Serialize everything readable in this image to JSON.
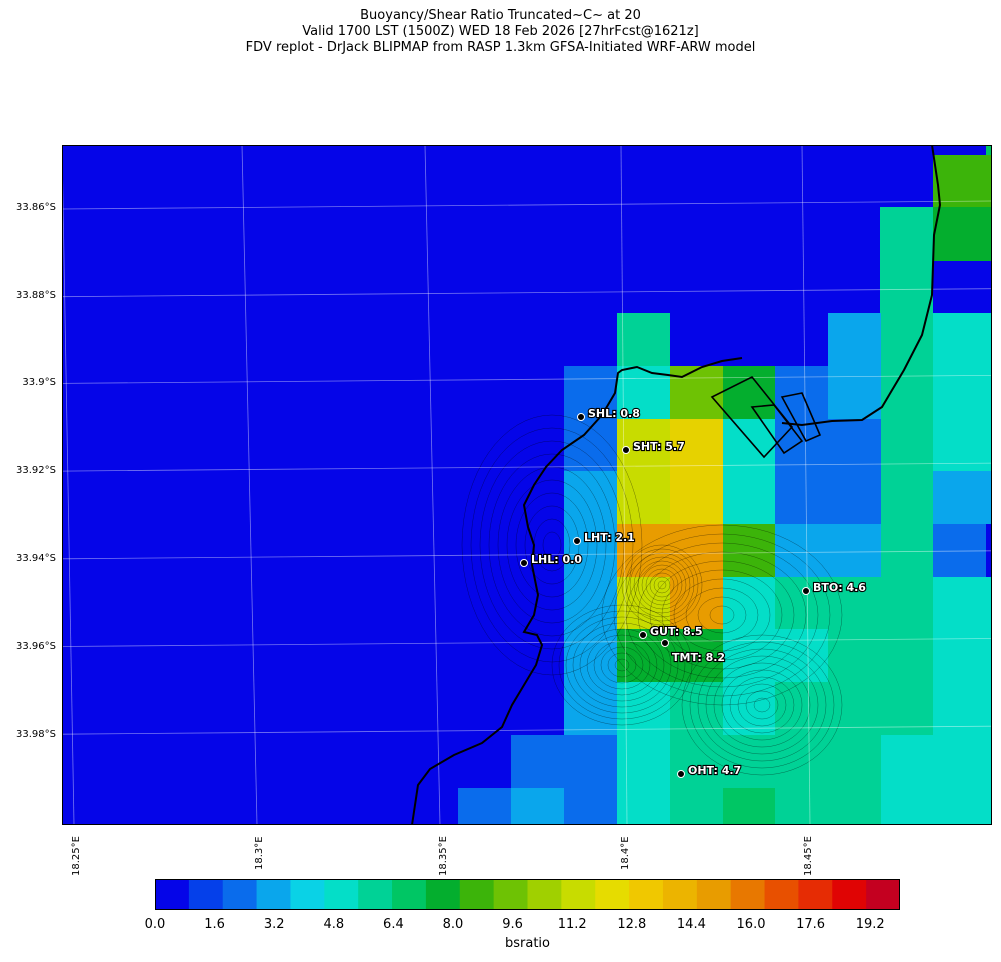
{
  "title": {
    "line1": "Buoyancy/Shear Ratio Truncated~C~    at 20",
    "line2": "Valid 1700 LST (1500Z) WED 18 Feb 2026 [27hrFcst@1621z]",
    "line3": "FDV replot - DrJack BLIPMAP from RASP 1.3km GFSA-Initiated WRF-ARW model"
  },
  "lat_labels": [
    "33.86°S",
    "33.88°S",
    "33.9°S",
    "33.92°S",
    "33.94°S",
    "33.96°S",
    "33.98°S"
  ],
  "lon_labels": [
    "18.25°E",
    "18.3°E",
    "18.35°E",
    "18.4°E",
    "18.45°E"
  ],
  "stations": [
    {
      "label": "SHL: 0.8",
      "value": 0.8
    },
    {
      "label": "SHT: 5.7",
      "value": 5.7
    },
    {
      "label": "LHT: 2.1",
      "value": 2.1
    },
    {
      "label": "LHL: 0.0",
      "value": 0.0
    },
    {
      "label": "BTO: 4.6",
      "value": 4.6
    },
    {
      "label": "GUT: 8.5",
      "value": 8.5
    },
    {
      "label": "TMT: 8.2",
      "value": 8.2
    },
    {
      "label": "OHT: 4.7",
      "value": 4.7
    }
  ],
  "colorbar": {
    "label": "bsratio",
    "ticks": [
      "0.0",
      "1.6",
      "3.2",
      "4.8",
      "6.4",
      "8.0",
      "9.6",
      "11.2",
      "12.8",
      "14.4",
      "16.0",
      "17.6",
      "19.2"
    ],
    "range": [
      0,
      20
    ],
    "colors": [
      "#0505e8",
      "#0540ea",
      "#0a6cec",
      "#0aa6ec",
      "#0ad2e6",
      "#04dec8",
      "#00d296",
      "#00c664",
      "#04ae2e",
      "#3cb40a",
      "#6ec204",
      "#a0d000",
      "#c8dc00",
      "#e6dc00",
      "#f0c800",
      "#ecb400",
      "#e89c00",
      "#e87800",
      "#e85000",
      "#e62c04",
      "#e00404",
      "#c40020"
    ]
  },
  "field": {
    "variable": "bsratio",
    "background_color": "#0505e8",
    "cell_colors": [
      "#0505e8",
      "#0a6cec",
      "#0aa6ec",
      "#04dec8",
      "#00d296",
      "#00c664",
      "#04ae2e",
      "#3cb40a",
      "#6ec204",
      "#c8dc00",
      "#e6d200",
      "#e89c00"
    ]
  }
}
